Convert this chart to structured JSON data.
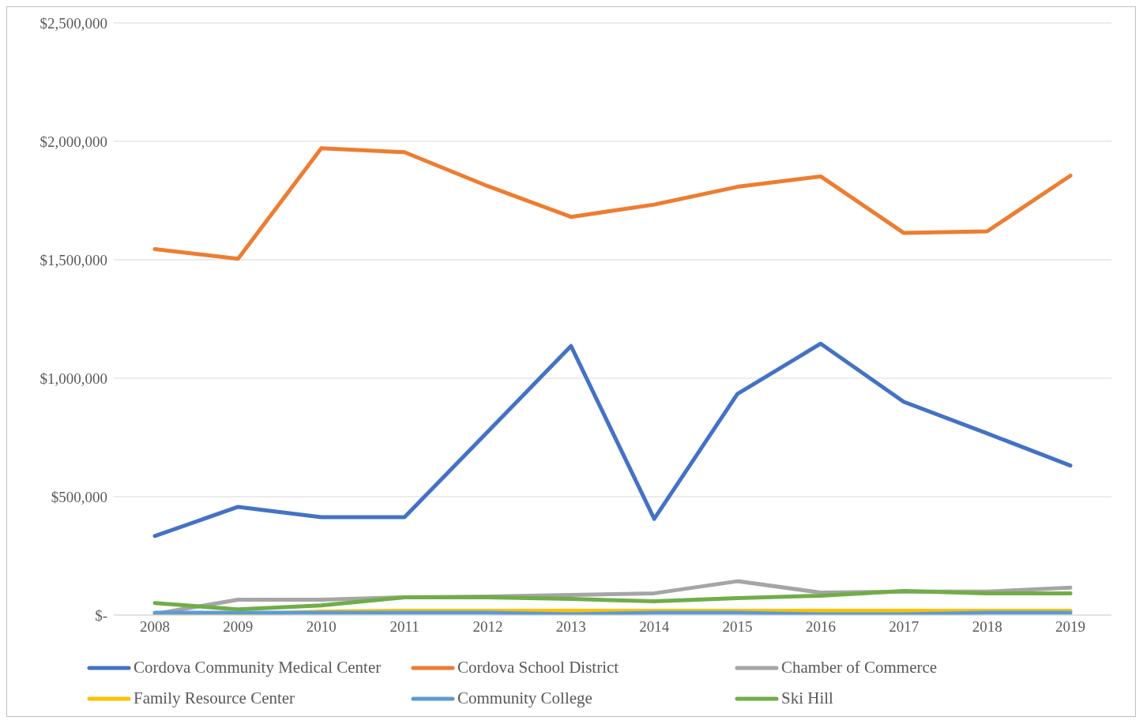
{
  "chart_data": {
    "type": "line",
    "categories": [
      "2008",
      "2009",
      "2010",
      "2011",
      "2012",
      "2013",
      "2014",
      "2015",
      "2016",
      "2017",
      "2018",
      "2019"
    ],
    "ylim": [
      0,
      2500000
    ],
    "yticks": [
      {
        "value": 0,
        "label": "$-"
      },
      {
        "value": 500000,
        "label": "$500,000"
      },
      {
        "value": 1000000,
        "label": "$1,000,000"
      },
      {
        "value": 1500000,
        "label": "$1,500,000"
      },
      {
        "value": 2000000,
        "label": "$2,000,000"
      },
      {
        "value": 2500000,
        "label": "$2,500,000"
      }
    ],
    "grid": "y",
    "legend": "bottom",
    "marker": "none",
    "line_style": "solid",
    "series": [
      {
        "name": "Cordova Community Medical Center",
        "color": "#4472c4",
        "values": [
          334000,
          457000,
          413000,
          413000,
          774000,
          1136000,
          406000,
          934000,
          1146000,
          900000,
          767000,
          631000
        ]
      },
      {
        "name": "Cordova School District",
        "color": "#ed7d31",
        "values": [
          1545000,
          1504000,
          1971000,
          1954000,
          1811000,
          1681000,
          1733000,
          1808000,
          1852000,
          1613000,
          1620000,
          1855000
        ]
      },
      {
        "name": "Chamber of Commerce",
        "color": "#a5a5a5",
        "values": [
          5000,
          65000,
          65000,
          75000,
          78000,
          85000,
          92000,
          143000,
          95000,
          99000,
          99000,
          116000
        ]
      },
      {
        "name": "Family Resource Center",
        "color": "#ffc000",
        "values": [
          0,
          2000,
          15000,
          18000,
          18000,
          18000,
          18000,
          18000,
          18000,
          18000,
          18000,
          18000
        ]
      },
      {
        "name": "Community College",
        "color": "#5b9bd5",
        "values": [
          10000,
          10000,
          10000,
          10000,
          10000,
          3000,
          10000,
          10000,
          3000,
          3000,
          10000,
          10000
        ]
      },
      {
        "name": "Ski Hill",
        "color": "#70ad47",
        "values": [
          51000,
          24000,
          41000,
          75000,
          75000,
          68000,
          58000,
          72000,
          82000,
          102000,
          92000,
          92000
        ]
      }
    ]
  }
}
